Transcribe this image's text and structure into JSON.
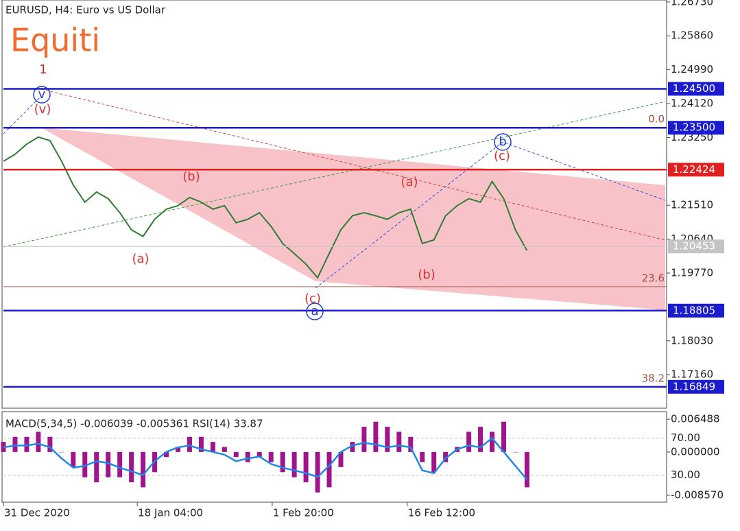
{
  "header": {
    "title": "EURUSD, H4:  Euro vs US Dollar",
    "watermark": "Equiti"
  },
  "annotations": [
    "1",
    "v",
    "(v)",
    "(b)",
    "(a)",
    "(a)",
    "(b)",
    "(c)",
    "a",
    "b",
    "(c)"
  ],
  "chart_data": [
    {
      "type": "line",
      "color": "#2e7d32",
      "xlim": [
        0,
        57
      ],
      "ylim": [
        1.163,
        1.2678
      ],
      "values": [
        1.2264,
        1.2282,
        1.2308,
        1.2326,
        1.2317,
        1.2264,
        1.2203,
        1.2159,
        1.2185,
        1.2168,
        1.2132,
        1.2088,
        1.2071,
        1.2115,
        1.2141,
        1.215,
        1.2171,
        1.2159,
        1.2141,
        1.215,
        1.2106,
        1.2115,
        1.2132,
        1.2097,
        1.2053,
        1.2027,
        1.2,
        1.1965,
        1.2027,
        1.2088,
        1.2124,
        1.2132,
        1.2124,
        1.2115,
        1.2132,
        1.2141,
        1.2053,
        1.2062,
        1.2124,
        1.215,
        1.2168,
        1.2159,
        1.2212,
        1.2168,
        1.2088,
        1.2035
      ],
      "yticks": [
        {
          "value": 1.2673,
          "label": "1.26730"
        },
        {
          "value": 1.2586,
          "label": "1.25860"
        },
        {
          "value": 1.2499,
          "label": "1.24990"
        },
        {
          "value": 1.2412,
          "label": "1.24120"
        },
        {
          "value": 1.2325,
          "label": "1.23250"
        },
        {
          "value": 1.2151,
          "label": "1.21510"
        },
        {
          "value": 1.2064,
          "label": "1.20640"
        },
        {
          "value": 1.1977,
          "label": "1.19770"
        },
        {
          "value": 1.1803,
          "label": "1.18030"
        },
        {
          "value": 1.1716,
          "label": "1.17160"
        }
      ],
      "levels": [
        {
          "value": 1.245,
          "label": "1.24500",
          "color": "#1c1ccf"
        },
        {
          "value": 1.235,
          "label": "1.23500",
          "color": "#1c1ccf"
        },
        {
          "value": 1.22424,
          "label": "1.22424",
          "color": "#e02020"
        },
        {
          "value": 1.20453,
          "label": "1.20453",
          "color": "#c4c4c4"
        },
        {
          "value": 1.18805,
          "label": "1.18805",
          "color": "#1c1ccf"
        },
        {
          "value": 1.16849,
          "label": "1.16849",
          "color": "#1c1ccf"
        }
      ],
      "fib_levels": [
        {
          "value": 1.235,
          "label": "0.0"
        },
        {
          "value": 1.1942,
          "label": "23.6"
        },
        {
          "value": 1.1685,
          "label": "38.2"
        }
      ]
    },
    {
      "type": "bar",
      "title": "MACD(5,34,5) -0.006039 -0.005361 RSI(14) 33.87",
      "xlim": [
        0,
        57
      ],
      "ylim": [
        -0.00994,
        0.008
      ],
      "y2lim": [
        0.6,
        98.7
      ],
      "xticks": [
        {
          "value": 0,
          "label": "31 Dec 2020"
        },
        {
          "value": 11.5,
          "label": "18 Jan 04:00"
        },
        {
          "value": 23.1,
          "label": "1 Feb 20:00"
        },
        {
          "value": 34.7,
          "label": "16 Feb 12:00"
        }
      ],
      "yticks": [
        0.006488,
        {
          "value": 0,
          "label": "0.000000"
        },
        {
          "value": -0.00857,
          "label": "-0.008570"
        }
      ],
      "y2ticks": [
        {
          "value": 70,
          "label": "70.00"
        },
        {
          "value": 30,
          "label": "30.00"
        }
      ],
      "series": [
        {
          "type": "bar",
          "color": "#a0148c",
          "values": [
            0.002,
            0.003,
            0.003,
            0.004,
            0.003,
            0.0,
            -0.003,
            -0.005,
            -0.006,
            -0.005,
            -0.005,
            -0.006,
            -0.007,
            -0.004,
            -0.001,
            0.001,
            0.003,
            0.003,
            0.002,
            0.001,
            -0.001,
            -0.002,
            -0.001,
            -0.002,
            -0.004,
            -0.005,
            -0.006,
            -0.008,
            -0.007,
            -0.003,
            0.002,
            0.005,
            0.006,
            0.005,
            0.004,
            0.003,
            -0.002,
            -0.004,
            -0.002,
            0.001,
            0.004,
            0.005,
            0.004,
            0.006,
            0.0,
            -0.007
          ]
        },
        {
          "type": "line",
          "axis": "y2",
          "color": "#1e88e5",
          "values": [
            60,
            62,
            62,
            64,
            60,
            48,
            38,
            40,
            45,
            43,
            38,
            34,
            30,
            45,
            55,
            60,
            62,
            58,
            55,
            52,
            45,
            48,
            50,
            42,
            38,
            35,
            32,
            28,
            40,
            55,
            62,
            65,
            63,
            60,
            62,
            60,
            35,
            32,
            48,
            58,
            62,
            60,
            70,
            55,
            40,
            25
          ]
        }
      ]
    }
  ]
}
